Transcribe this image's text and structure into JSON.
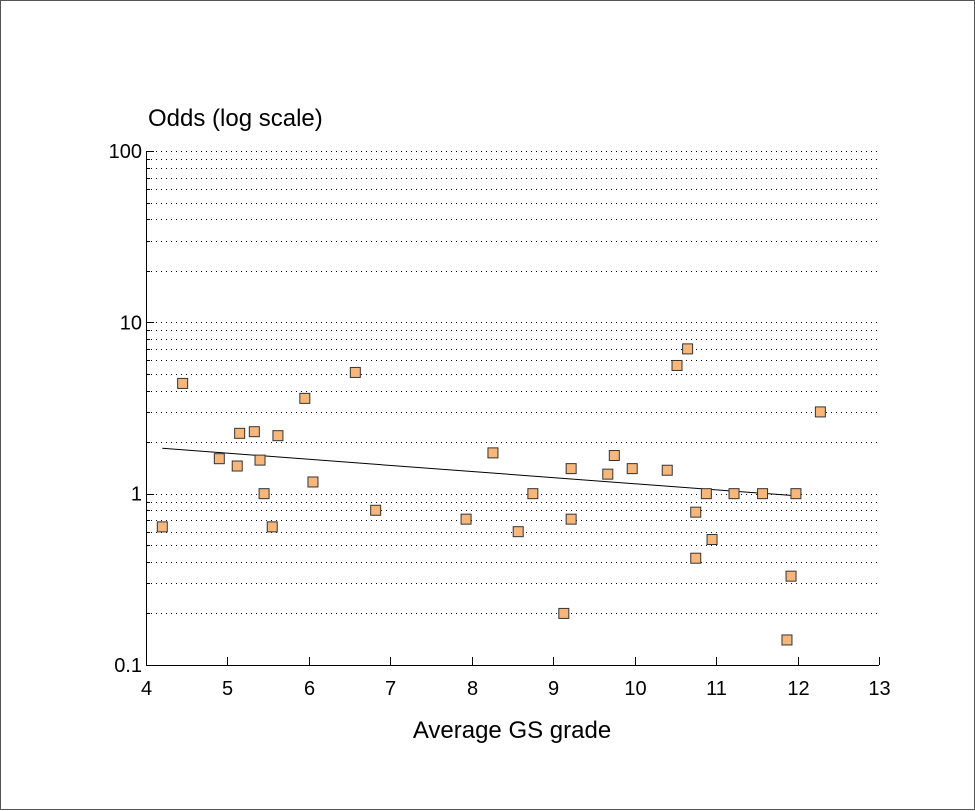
{
  "chart_data": {
    "type": "scatter",
    "title": "",
    "ylabel": "Odds (log scale)",
    "xlabel": "Average GS grade",
    "y_scale": "log",
    "xlim": [
      4,
      13
    ],
    "ylim": [
      0.1,
      100
    ],
    "x_ticks": [
      "4",
      "5",
      "6",
      "7",
      "8",
      "9",
      "10",
      "11",
      "12",
      "13"
    ],
    "y_ticks": [
      "0.1",
      "1",
      "10",
      "100"
    ],
    "grid": "dotted horizontal at log minor ticks",
    "legend": "none",
    "colors": {
      "marker_fill": "#F7B77B",
      "marker_edge": "#333333",
      "trend_line": "#000000",
      "grid": "#000000"
    },
    "series": [
      {
        "values": [
          [
            4.2,
            0.64
          ],
          [
            4.45,
            4.4
          ],
          [
            4.9,
            1.6
          ],
          [
            5.12,
            1.45
          ],
          [
            5.15,
            2.25
          ],
          [
            5.33,
            2.3
          ],
          [
            5.4,
            1.57
          ],
          [
            5.45,
            1.0
          ],
          [
            5.55,
            0.64
          ],
          [
            5.62,
            2.18
          ],
          [
            5.95,
            3.6
          ],
          [
            6.05,
            1.17
          ],
          [
            6.57,
            5.1
          ],
          [
            6.82,
            0.8
          ],
          [
            7.93,
            0.71
          ],
          [
            8.26,
            1.73
          ],
          [
            8.57,
            0.6
          ],
          [
            8.75,
            1.0
          ],
          [
            9.13,
            0.2
          ],
          [
            9.22,
            1.4
          ],
          [
            9.22,
            0.71
          ],
          [
            9.67,
            1.3
          ],
          [
            9.75,
            1.67
          ],
          [
            9.97,
            1.4
          ],
          [
            10.4,
            1.37
          ],
          [
            10.52,
            5.6
          ],
          [
            10.65,
            7.0
          ],
          [
            10.75,
            0.42
          ],
          [
            10.75,
            0.78
          ],
          [
            10.88,
            1.0
          ],
          [
            10.95,
            0.54
          ],
          [
            11.22,
            1.0
          ],
          [
            11.57,
            1.0
          ],
          [
            11.87,
            0.14
          ],
          [
            11.92,
            0.33
          ],
          [
            11.98,
            1.0
          ],
          [
            12.28,
            3.0
          ]
        ]
      }
    ],
    "trend_line": {
      "x": [
        4.2,
        12.0
      ],
      "y": [
        1.84,
        0.97
      ]
    }
  }
}
